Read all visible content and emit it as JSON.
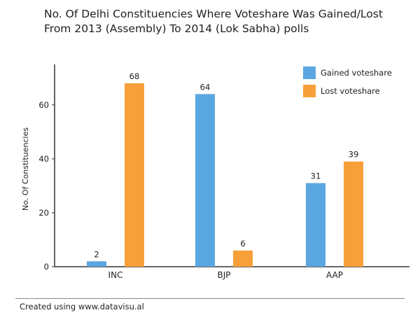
{
  "chart_data": {
    "type": "bar",
    "title_lines": [
      "No. Of Delhi Constituencies Where Voteshare Was Gained/Lost",
      "From 2013 (Assembly) To 2014 (Lok Sabha) polls"
    ],
    "categories": [
      "INC",
      "BJP",
      "AAP"
    ],
    "series": [
      {
        "name": "Gained voteshare",
        "values": [
          2,
          64,
          31
        ],
        "color": "#5aa6e0"
      },
      {
        "name": "Lost voteshare",
        "values": [
          68,
          6,
          39
        ],
        "color": "#f7a03a"
      }
    ],
    "xlabel": "",
    "ylabel": "No. Of Constituencies",
    "ylim": [
      0,
      75
    ],
    "yticks": [
      0,
      20,
      40,
      60
    ],
    "grid": false,
    "legend_position": "top-right"
  },
  "footer": {
    "text": "Created using www.datavisu.al"
  }
}
